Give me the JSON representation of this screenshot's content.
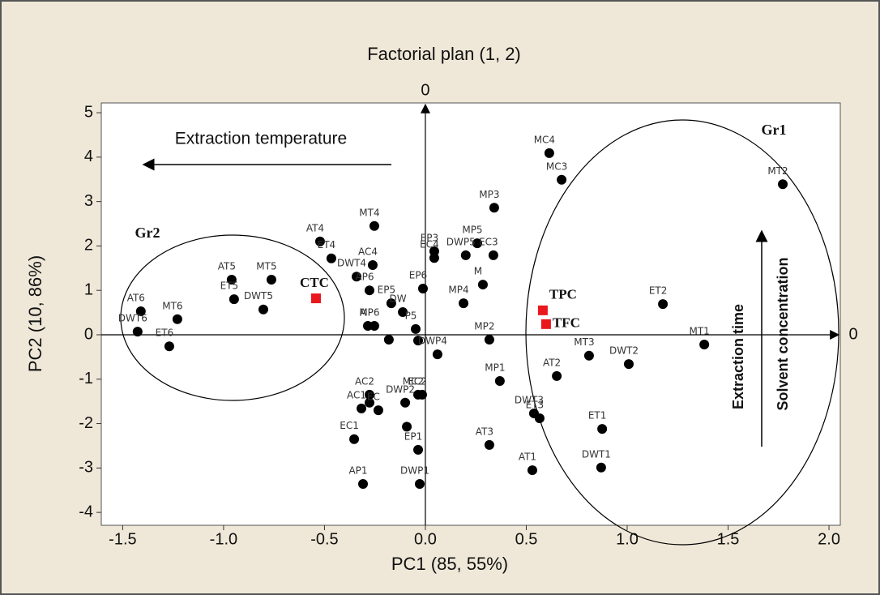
{
  "chart_data": {
    "type": "scatter",
    "title": "Factorial plan (1, 2)",
    "x_label": "PC1 (85, 55%)",
    "y_label": "PC2 (10, 86%)",
    "xlim": [
      -1.606,
      2.056
    ],
    "ylim": [
      -4.29,
      5.22
    ],
    "xticks": [
      -1.5,
      {
        "value": -1.0,
        "label": "-1.0"
      },
      -0.5,
      {
        "value": 0.0,
        "label": "0.0"
      },
      0.5,
      {
        "value": 1.0,
        "label": "1.0"
      },
      1.5,
      {
        "value": 2.0,
        "label": "2.0"
      }
    ],
    "yticks": [
      -4,
      -3,
      -2,
      -1,
      0,
      1,
      2,
      3,
      4,
      5
    ],
    "series": [
      {
        "color": "#000000",
        "marker": "circle",
        "labels": [
          "MC4",
          "MC3",
          "MT2",
          "MP3",
          "MT4",
          "AT4",
          "ET4",
          "DWT4",
          "AC4",
          "EP3",
          "EC4",
          "MP5",
          "DWP5",
          "EC3",
          "M",
          "EP6",
          "MP4",
          "AT5",
          "MT5",
          "ET5",
          "DWT5",
          "AT6",
          "MT6",
          "DWT6",
          "ET6",
          "AP6",
          "EP5",
          "A",
          "MP6",
          null,
          "DW",
          "P5",
          null,
          "DWP4",
          "MP2",
          "MP1",
          "AT2",
          "MT3",
          "DWT2",
          "ET2",
          "MT1",
          "DWT3",
          "ET3",
          "ET1",
          "DWT1",
          "AT1",
          "AT3",
          "MC2",
          "EC2",
          "AC2",
          "AC1",
          null,
          "EC",
          "DWP2",
          null,
          "EC1",
          "EP1",
          "AP1",
          "DWP1"
        ],
        "x": [
          0.614,
          0.675,
          1.771,
          0.341,
          -0.253,
          -0.522,
          -0.466,
          -0.341,
          -0.261,
          0.044,
          0.044,
          0.257,
          0.2,
          0.337,
          0.285,
          -0.012,
          0.189,
          -0.96,
          -0.763,
          -0.948,
          -0.803,
          -1.41,
          -1.229,
          -1.426,
          -1.269,
          -0.277,
          -0.169,
          -0.285,
          -0.253,
          -0.181,
          -0.112,
          -0.048,
          -0.036,
          0.06,
          0.317,
          0.369,
          0.651,
          0.811,
          1.008,
          1.177,
          1.382,
          0.538,
          0.566,
          0.876,
          0.871,
          0.53,
          0.317,
          -0.036,
          -0.016,
          -0.277,
          -0.317,
          -0.277,
          -0.233,
          -0.1,
          -0.092,
          -0.353,
          -0.036,
          -0.309,
          -0.028
        ],
        "y": [
          4.09,
          3.49,
          3.39,
          2.86,
          2.45,
          2.1,
          1.72,
          1.31,
          1.57,
          1.88,
          1.73,
          2.06,
          1.79,
          1.79,
          1.13,
          1.04,
          0.71,
          1.24,
          1.24,
          0.8,
          0.57,
          0.53,
          0.35,
          0.07,
          -0.26,
          1.0,
          0.71,
          0.2,
          0.2,
          -0.11,
          0.51,
          0.13,
          -0.13,
          -0.44,
          -0.11,
          -1.04,
          -0.93,
          -0.47,
          -0.66,
          0.69,
          -0.22,
          -1.77,
          -1.88,
          -2.12,
          -2.99,
          -3.05,
          -2.48,
          -1.35,
          -1.35,
          -1.35,
          -1.66,
          -1.53,
          -1.7,
          -1.53,
          -2.07,
          -2.35,
          -2.59,
          -3.36,
          -3.36
        ]
      },
      {
        "color": "#e8181c",
        "marker": "square",
        "labels": [
          "CTC",
          "TPC",
          "TFC"
        ],
        "x": [
          -0.542,
          0.582,
          0.598
        ],
        "y": [
          0.82,
          0.55,
          0.24
        ]
      }
    ],
    "annotations": [
      "Extraction temperature",
      "Gr1",
      "Gr2",
      "Extraction time",
      "Solvent concentration",
      "0",
      "0"
    ]
  }
}
